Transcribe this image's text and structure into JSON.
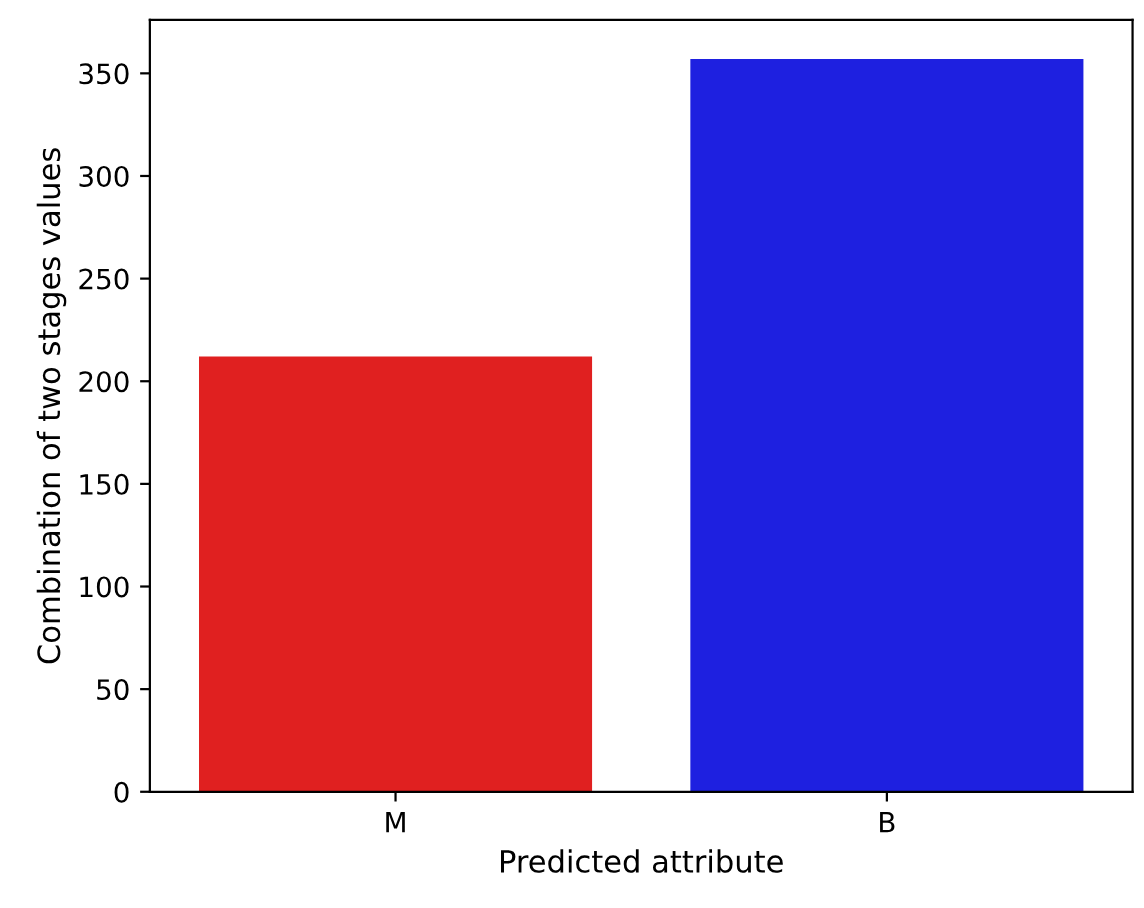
{
  "chart_data": {
    "type": "bar",
    "xlabel": "Predicted attribute",
    "ylabel": "Combination of two stages values",
    "categories": [
      "M",
      "B"
    ],
    "values": [
      212,
      357
    ],
    "colors": [
      "#e02020",
      "#1e20e0"
    ],
    "ylim": [
      0,
      376
    ],
    "yticks": [
      0,
      50,
      100,
      150,
      200,
      250,
      300,
      350
    ],
    "grid": false
  }
}
